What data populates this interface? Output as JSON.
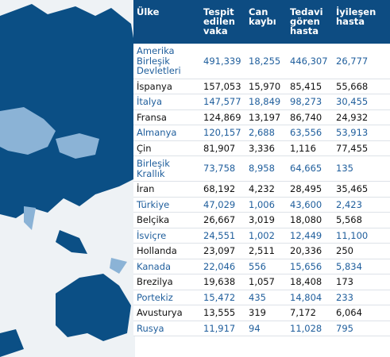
{
  "table": {
    "header": [
      "Ülke",
      "Tespit edilen vaka",
      "Can kaybı",
      "Tedavi gören hasta",
      "İyileşen hasta"
    ],
    "rows": [
      [
        "Amerika Birleşik Devletleri",
        "491,339",
        "18,255",
        "446,307",
        "26,777"
      ],
      [
        "İspanya",
        "157,053",
        "15,970",
        "85,415",
        "55,668"
      ],
      [
        "İtalya",
        "147,577",
        "18,849",
        "98,273",
        "30,455"
      ],
      [
        "Fransa",
        "124,869",
        "13,197",
        "86,740",
        "24,932"
      ],
      [
        "Almanya",
        "120,157",
        "2,688",
        "63,556",
        "53,913"
      ],
      [
        "Çin",
        "81,907",
        "3,336",
        "1,116",
        "77,455"
      ],
      [
        "Birleşik Krallık",
        "73,758",
        "8,958",
        "64,665",
        "135"
      ],
      [
        "İran",
        "68,192",
        "4,232",
        "28,495",
        "35,465"
      ],
      [
        "Türkiye",
        "47,029",
        "1,006",
        "43,600",
        "2,423"
      ],
      [
        "Belçika",
        "26,667",
        "3,019",
        "18,080",
        "5,568"
      ],
      [
        "İsviçre",
        "24,551",
        "1,002",
        "12,449",
        "11,100"
      ],
      [
        "Hollanda",
        "23,097",
        "2,511",
        "20,336",
        "250"
      ],
      [
        "Kanada",
        "22,046",
        "556",
        "15,656",
        "5,834"
      ],
      [
        "Brezilya",
        "19,638",
        "1,057",
        "18,408",
        "173"
      ],
      [
        "Portekiz",
        "15,472",
        "435",
        "14,804",
        "233"
      ],
      [
        "Avusturya",
        "13,555",
        "319",
        "7,172",
        "6,064"
      ],
      [
        "Rusya",
        "11,917",
        "94",
        "11,028",
        "795"
      ]
    ]
  }
}
